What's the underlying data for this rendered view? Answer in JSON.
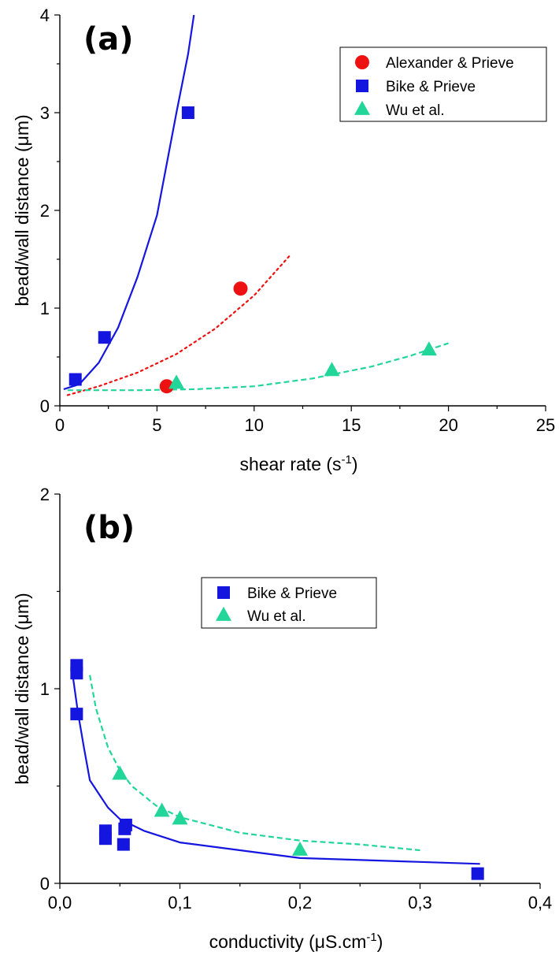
{
  "chart_data": [
    {
      "panel_label": "(a)",
      "type": "scatter",
      "xlabel": "shear rate (s",
      "xlabel_sup": "-1",
      "xlabel_tail": ")",
      "ylabel": "bead/wall distance (μm)",
      "xlim": [
        0,
        25
      ],
      "ylim": [
        0,
        4
      ],
      "xticks": [
        0,
        5,
        10,
        15,
        20,
        25
      ],
      "xtick_labels": [
        "0",
        "5",
        "10",
        "15",
        "20",
        "25"
      ],
      "yticks": [
        0,
        1,
        2,
        3,
        4
      ],
      "ytick_labels": [
        "0",
        "1",
        "2",
        "3",
        "4"
      ],
      "legend_position": "top-right",
      "series": [
        {
          "name": "Alexander & Prieve",
          "color": "#ee1111",
          "marker": "circle",
          "points": [
            [
              5.5,
              0.2
            ],
            [
              9.3,
              1.2
            ]
          ],
          "fit": {
            "style": "dotted",
            "points": [
              [
                0.4,
                0.11
              ],
              [
                2,
                0.2
              ],
              [
                4,
                0.34
              ],
              [
                6,
                0.53
              ],
              [
                8,
                0.79
              ],
              [
                10,
                1.13
              ],
              [
                11.8,
                1.53
              ]
            ]
          }
        },
        {
          "name": "Bike & Prieve",
          "color": "#1515e0",
          "marker": "square",
          "points": [
            [
              0.8,
              0.27
            ],
            [
              2.3,
              0.7
            ],
            [
              6.6,
              3.0
            ]
          ],
          "fit": {
            "style": "solid",
            "points": [
              [
                0.2,
                0.17
              ],
              [
                1,
                0.22
              ],
              [
                2,
                0.44
              ],
              [
                3,
                0.8
              ],
              [
                4,
                1.32
              ],
              [
                5,
                1.95
              ],
              [
                6,
                3.0
              ],
              [
                6.6,
                3.6
              ],
              [
                6.9,
                4.0
              ]
            ]
          }
        },
        {
          "name": "Wu et al.",
          "color": "#22d69a",
          "marker": "triangle",
          "points": [
            [
              6.0,
              0.23
            ],
            [
              14.0,
              0.36
            ],
            [
              19.0,
              0.57
            ]
          ],
          "fit": {
            "style": "dashed",
            "points": [
              [
                0.4,
                0.16
              ],
              [
                4,
                0.16
              ],
              [
                7,
                0.17
              ],
              [
                10,
                0.2
              ],
              [
                13,
                0.28
              ],
              [
                16,
                0.4
              ],
              [
                18,
                0.51
              ],
              [
                20,
                0.64
              ]
            ]
          }
        }
      ]
    },
    {
      "panel_label": "(b)",
      "type": "scatter",
      "xlabel": "conductivity (μS.cm",
      "xlabel_sup": "-1",
      "xlabel_tail": ")",
      "ylabel": "bead/wall distance (μm)",
      "xlim": [
        0,
        0.4
      ],
      "ylim": [
        0,
        2
      ],
      "xticks": [
        0,
        0.1,
        0.2,
        0.3,
        0.4
      ],
      "xtick_labels": [
        "0,0",
        "0,1",
        "0,2",
        "0,3",
        "0,4"
      ],
      "yticks": [
        0,
        1,
        2
      ],
      "ytick_labels": [
        "0",
        "1",
        "2"
      ],
      "legend_position": "top-center",
      "series": [
        {
          "name": "Bike & Prieve",
          "color": "#1515e0",
          "marker": "square",
          "points": [
            [
              0.014,
              1.12
            ],
            [
              0.014,
              1.08
            ],
            [
              0.014,
              0.87
            ],
            [
              0.038,
              0.27
            ],
            [
              0.038,
              0.23
            ],
            [
              0.053,
              0.2
            ],
            [
              0.054,
              0.28
            ],
            [
              0.055,
              0.3
            ],
            [
              0.348,
              0.05
            ]
          ],
          "fit": {
            "style": "solid",
            "points": [
              [
                0.01,
                1.1
              ],
              [
                0.015,
                0.88
              ],
              [
                0.02,
                0.7
              ],
              [
                0.025,
                0.53
              ],
              [
                0.04,
                0.39
              ],
              [
                0.05,
                0.33
              ],
              [
                0.07,
                0.27
              ],
              [
                0.1,
                0.21
              ],
              [
                0.15,
                0.17
              ],
              [
                0.2,
                0.13
              ],
              [
                0.3,
                0.11
              ],
              [
                0.35,
                0.1
              ]
            ]
          }
        },
        {
          "name": "Wu et al.",
          "color": "#22d69a",
          "marker": "triangle",
          "points": [
            [
              0.05,
              0.56
            ],
            [
              0.085,
              0.37
            ],
            [
              0.1,
              0.33
            ],
            [
              0.2,
              0.17
            ]
          ],
          "fit": {
            "style": "dashed",
            "points": [
              [
                0.025,
                1.07
              ],
              [
                0.03,
                0.9
              ],
              [
                0.04,
                0.7
              ],
              [
                0.05,
                0.58
              ],
              [
                0.06,
                0.5
              ],
              [
                0.08,
                0.4
              ],
              [
                0.1,
                0.34
              ],
              [
                0.15,
                0.26
              ],
              [
                0.2,
                0.22
              ],
              [
                0.25,
                0.2
              ],
              [
                0.3,
                0.17
              ]
            ]
          }
        }
      ]
    }
  ]
}
